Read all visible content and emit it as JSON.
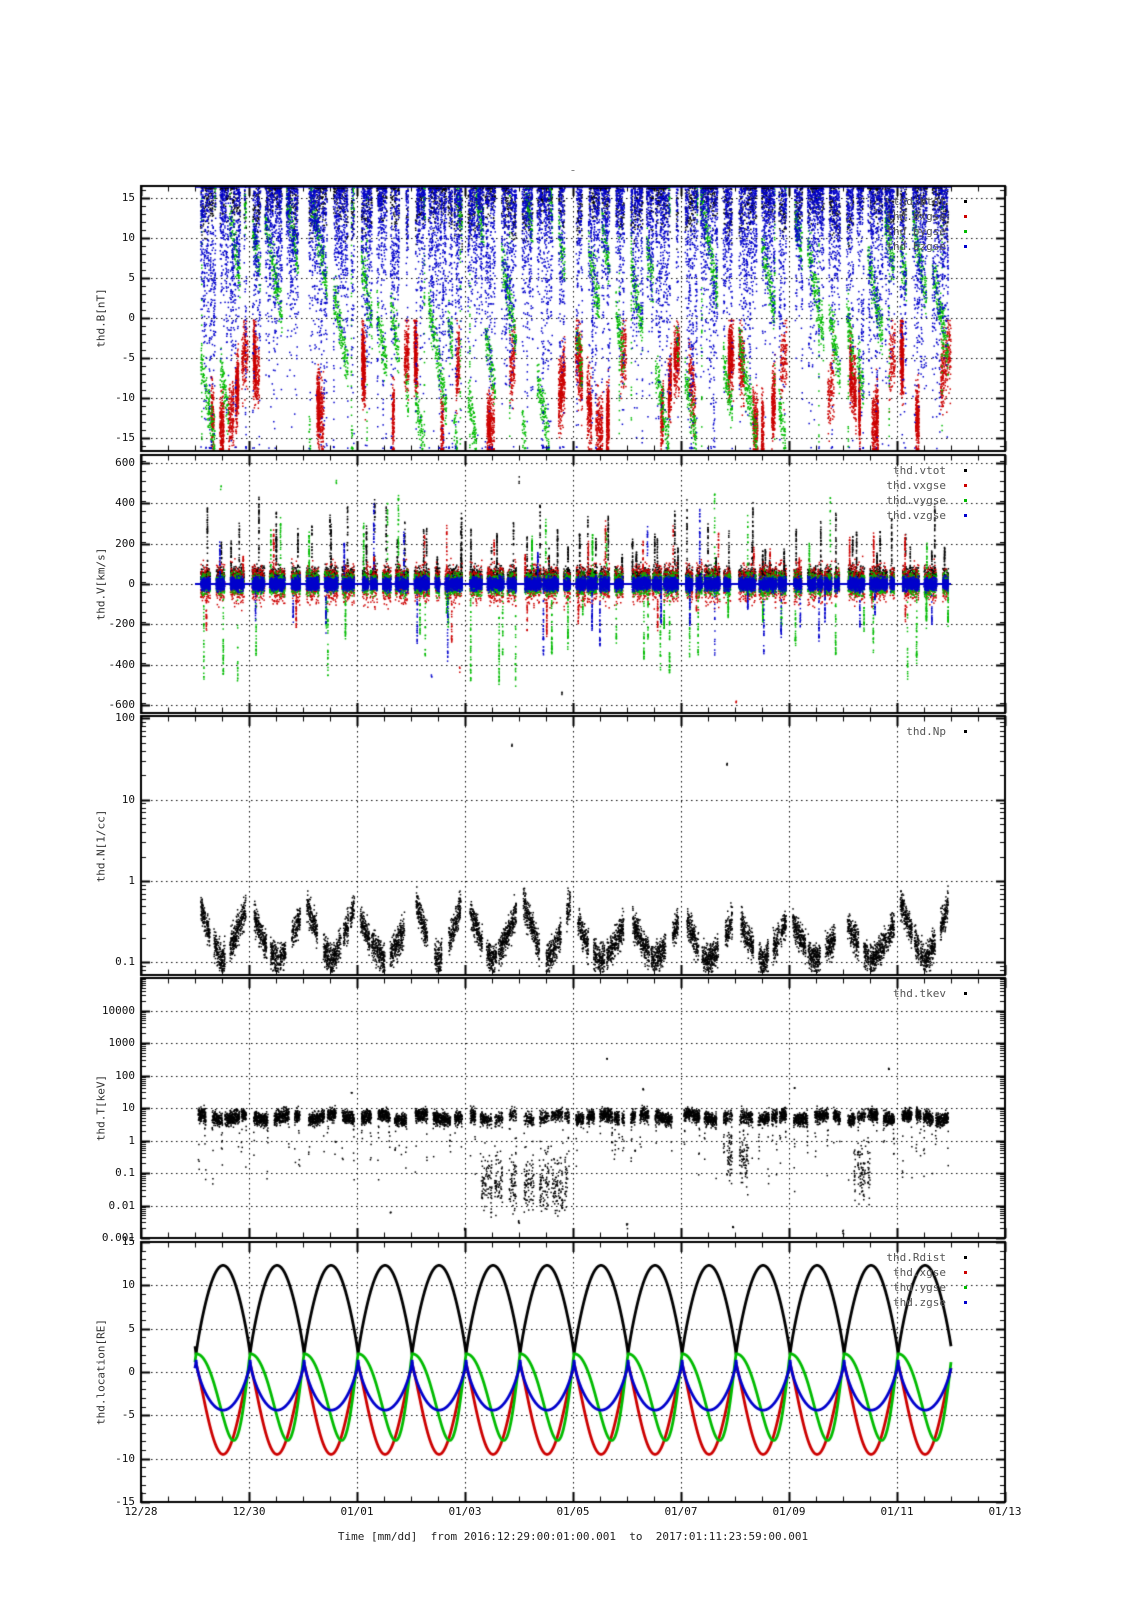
{
  "suptitle": "-",
  "background": "#ffffff",
  "time_axis": {
    "title": "Time [mm/dd]  from 2016:12:29:00:01:00.001  to  2017:01:11:23:59:00.001",
    "tick_labels": [
      "12/28",
      "12/30",
      "01/01",
      "01/03",
      "01/05",
      "01/07",
      "01/09",
      "01/11",
      "01/13"
    ],
    "days_total": 16,
    "major_every_days": 2,
    "minor_every_days": 0.5,
    "data_range_days": [
      1,
      15
    ]
  },
  "activity": {
    "window": [
      0.05,
      0.95
    ],
    "seg_len": [
      0.08,
      0.34
    ],
    "gap_len": [
      0.02,
      0.13
    ]
  },
  "colors": {
    "black": "#000000",
    "red": "#cc0000",
    "green": "#00bb00",
    "blue": "#0000cc"
  },
  "chart_data": [
    {
      "id": "thd.B",
      "type": "scatter",
      "ylabel": "thd.B[nT]",
      "scale": "linear",
      "ylim": [
        -16.6,
        16.5
      ],
      "yticks": [
        15,
        10,
        5,
        0,
        -5,
        -10,
        -15
      ],
      "ytick_labels": [
        "15",
        "10",
        "5",
        "0",
        "-5",
        "-10",
        "-15"
      ],
      "minor_step": 1,
      "seed": 11,
      "series": [
        {
          "name": "thd.btot",
          "color": "#000000",
          "kind": "band",
          "base": 12.2,
          "amp": 3.6,
          "noise": 1.8,
          "clip_hi": 16.38,
          "density": 500
        },
        {
          "name": "thd.bxgse",
          "color": "#cc0000",
          "kind": "negclusters",
          "base": -3.5,
          "depth": 9.5,
          "noise": 2.0,
          "prob": 0.75,
          "density": 450
        },
        {
          "name": "thd.bygse",
          "color": "#00bb00",
          "kind": "ramps",
          "top": 15.5,
          "span": 31,
          "rate": 1.25,
          "noise": 1.3,
          "clip_lo": -16.35,
          "col_prob": 0.3,
          "density": 600
        },
        {
          "name": "thd.bzgse",
          "color": "#0000cc",
          "kind": "columns",
          "top": 16.3,
          "col_dt": 0.011,
          "depth_base": 5,
          "depth_var": 20,
          "clip_lo": -16.3,
          "density": 1500,
          "topline": 16.42
        }
      ]
    },
    {
      "id": "thd.V",
      "type": "scatter",
      "ylabel": "thd.V[km/s]",
      "scale": "linear",
      "ylim": [
        -640,
        640
      ],
      "yticks": [
        600,
        400,
        200,
        0,
        -200,
        -400,
        -600
      ],
      "ytick_labels": [
        "600",
        "400",
        "200",
        "0",
        "-200",
        "-400",
        "-600"
      ],
      "minor_step": 50,
      "seed": 22,
      "series": [
        {
          "name": "thd.vtot",
          "color": "#000000",
          "kind": "jitter",
          "base": 15,
          "spread": 30,
          "abs": true,
          "spike_prob": 2.0,
          "spike_amp": [
            120,
            420
          ],
          "spike_sign": 1,
          "density": 800
        },
        {
          "name": "thd.vxgse",
          "color": "#cc0000",
          "kind": "jitter",
          "base": 18,
          "spread": 42,
          "abs": false,
          "spike_prob": 1.0,
          "spike_amp": [
            120,
            300
          ],
          "spike_sign": 0,
          "density": 900
        },
        {
          "name": "thd.vygse",
          "color": "#00bb00",
          "kind": "jitter",
          "base": 0,
          "spread": 24,
          "abs": false,
          "spike_prob": 1.6,
          "spike_amp": [
            150,
            500
          ],
          "spike_sign": -0.3,
          "density": 1000
        },
        {
          "name": "thd.vzgse",
          "color": "#0000cc",
          "kind": "jitter",
          "base": 0,
          "spread": 15,
          "abs": false,
          "spike_prob": 0.9,
          "spike_amp": [
            120,
            430
          ],
          "spike_sign": -0.5,
          "density": 1600,
          "zeroline": 0
        }
      ],
      "outliers": [
        {
          "t": 1.48,
          "v": 480,
          "color": "#00bb00"
        },
        {
          "t": 3.62,
          "v": 495,
          "color": "#00bb00"
        },
        {
          "t": 7.0,
          "v": 512,
          "color": "#000000"
        },
        {
          "t": 11.02,
          "v": -588,
          "color": "#cc0000"
        },
        {
          "t": 5.38,
          "v": -462,
          "color": "#0000cc"
        },
        {
          "t": 7.8,
          "v": -530,
          "color": "#000000"
        },
        {
          "t": 5.9,
          "v": -428,
          "color": "#cc0000"
        }
      ]
    },
    {
      "id": "thd.N",
      "type": "scatter",
      "ylabel": "thd.N[1/cc]",
      "scale": "log",
      "ylim": [
        0.07,
        107
      ],
      "yticks": [
        100,
        10,
        1,
        0.1
      ],
      "ytick_labels": [
        "100",
        "10",
        "1",
        "0.1"
      ],
      "seed": 33,
      "series": [
        {
          "name": "thd.Np",
          "color": "#000000",
          "kind": "vshape",
          "level_log": -0.97,
          "edge_rise": 0.82,
          "center": 0.52,
          "noise": 0.09,
          "clip_hi_log": 0.2,
          "density": 900
        }
      ],
      "outliers": [
        {
          "t": 6.87,
          "v": 47,
          "color": "#000000"
        },
        {
          "t": 10.85,
          "v": 27,
          "color": "#000000"
        }
      ]
    },
    {
      "id": "thd.T",
      "type": "scatter",
      "ylabel": "thd.T[keV]",
      "scale": "log",
      "ylim": [
        0.001,
        100000
      ],
      "yticks": [
        10000,
        1000,
        100,
        10,
        1,
        0.1,
        0.01,
        0.001
      ],
      "ytick_labels": [
        "10000",
        "1000",
        "100",
        "10",
        "1",
        "0.1",
        "0.01",
        "0.001"
      ],
      "seed": 44,
      "series": [
        {
          "name": "thd.tkev",
          "color": "#000000",
          "kind": "tband",
          "center_log": 0.72,
          "noise": 0.1,
          "density": 950,
          "dips": [
            [
              6.3,
              7.9,
              -1.3
            ],
            [
              10.85,
              11.25,
              -0.5
            ],
            [
              13.2,
              13.5,
              -1.0
            ]
          ]
        }
      ],
      "outliers": [
        {
          "t": 8.63,
          "v": 330,
          "color": "#000000"
        },
        {
          "t": 12.1,
          "v": 42,
          "color": "#000000"
        },
        {
          "t": 9.3,
          "v": 38,
          "color": "#000000"
        },
        {
          "t": 4.62,
          "v": 0.006,
          "color": "#000000"
        },
        {
          "t": 13.85,
          "v": 160,
          "color": "#000000"
        },
        {
          "t": 3.9,
          "v": 30,
          "color": "#000000"
        }
      ],
      "perigee_dots": [
        {
          "t": 6.0,
          "v": 0.002
        },
        {
          "t": 7.0,
          "v": 0.003
        },
        {
          "t": 9.0,
          "v": 0.0024
        },
        {
          "t": 10.97,
          "v": 0.002
        },
        {
          "t": 13.0,
          "v": 0.0016
        }
      ]
    },
    {
      "id": "thd.location",
      "type": "line",
      "ylabel": "thd.location[RE]",
      "scale": "linear",
      "ylim": [
        -15,
        15
      ],
      "yticks": [
        15,
        10,
        5,
        0,
        -5,
        -10,
        -15
      ],
      "ytick_labels": [
        "15",
        "10",
        "5",
        "0",
        "-5",
        "-10",
        "-15"
      ],
      "minor_step": 1,
      "seed": 55,
      "orbit": {
        "period_days": 1.0,
        "perigee_offset": 0.02,
        "apogee_re": 12.3,
        "perigee_re": 2.0
      },
      "series": [
        {
          "name": "thd.Rdist",
          "color": "#000000",
          "kind": "orbit",
          "c": 2.0,
          "a": 10.3,
          "p": 0.85,
          "skew": 1.0
        },
        {
          "name": "thd.xgse",
          "color": "#cc0000",
          "kind": "orbit",
          "c": 0.9,
          "a": -10.4,
          "p": 1.15,
          "skew": 1.0
        },
        {
          "name": "thd.ygse",
          "color": "#00bb00",
          "kind": "orbit",
          "c": 2.1,
          "a": -10.0,
          "p": 1.1,
          "skew": 1.9
        },
        {
          "name": "thd.zgse",
          "color": "#0000cc",
          "kind": "orbit",
          "c": 1.4,
          "a": -5.8,
          "p": 0.65,
          "skew": 1.0
        }
      ]
    }
  ]
}
